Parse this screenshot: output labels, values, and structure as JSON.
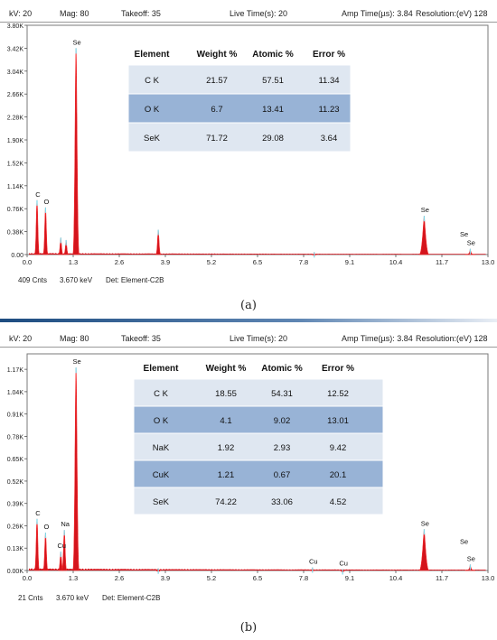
{
  "panels": [
    {
      "header": {
        "kv": "kV: 20",
        "mag": "Mag: 80",
        "takeoff": "Takeoff: 35",
        "live_time": "Live Time(s): 20",
        "amp_time": "Amp Time(µs): 3.84",
        "resolution": "Resolution:(eV) 128"
      },
      "footer": {
        "counts": "409 Cnts",
        "kev": "3.670 keV",
        "det": "Det: Element-C2B"
      },
      "caption": "(a)"
    },
    {
      "header": {
        "kv": "kV: 20",
        "mag": "Mag: 80",
        "takeoff": "Takeoff: 35",
        "live_time": "Live Time(s): 20",
        "amp_time": "Amp Time(µs): 3.84",
        "resolution": "Resolution:(eV) 128"
      },
      "footer": {
        "counts": "21 Cnts",
        "kev": "3.670 keV",
        "det": "Det: Element-C2B"
      },
      "caption": "(b)"
    }
  ],
  "chart_data": [
    {
      "type": "area",
      "x_ticks": [
        "0.0",
        "1.3",
        "2.6",
        "3.9",
        "5.2",
        "6.5",
        "7.8",
        "9.1",
        "10.4",
        "11.7",
        "13.0"
      ],
      "y_ticks": [
        "0.00",
        "0.38K",
        "0.76K",
        "1.14K",
        "1.52K",
        "1.90K",
        "2.28K",
        "2.66K",
        "3.04K",
        "3.42K",
        "3.80K"
      ],
      "xlim": [
        0,
        13.0
      ],
      "ylim": [
        0,
        3800
      ],
      "peaks": [
        {
          "x": 0.28,
          "y": 900
        },
        {
          "x": 0.52,
          "y": 780
        },
        {
          "x": 0.95,
          "y": 280
        },
        {
          "x": 1.1,
          "y": 240
        },
        {
          "x": 1.38,
          "y": 3420
        },
        {
          "x": 3.7,
          "y": 410
        },
        {
          "x": 8.1,
          "y": 40
        },
        {
          "x": 11.2,
          "y": 640
        },
        {
          "x": 12.5,
          "y": 95
        }
      ],
      "peak_labels": [
        {
          "text": "Se",
          "x": 1.38,
          "y": 3420
        },
        {
          "text": "C",
          "x": 0.28,
          "y": 900
        },
        {
          "text": "O",
          "x": 0.52,
          "y": 780
        },
        {
          "text": "Se",
          "x": 11.2,
          "y": 640
        },
        {
          "text": "Se",
          "x": 12.3,
          "y": 240
        },
        {
          "text": "Se",
          "x": 12.5,
          "y": 95
        }
      ],
      "table": {
        "headers": [
          "Element",
          "Weight %",
          "Atomic %",
          "Error %"
        ],
        "rows": [
          [
            "C K",
            "21.57",
            "57.51",
            "11.34"
          ],
          [
            "O K",
            "6.7",
            "13.41",
            "11.23"
          ],
          [
            "SeK",
            "71.72",
            "29.08",
            "3.64"
          ]
        ]
      }
    },
    {
      "type": "area",
      "x_ticks": [
        "0.0",
        "1.3",
        "2.6",
        "3.9",
        "5.2",
        "6.5",
        "7.8",
        "9.1",
        "10.4",
        "11.7",
        "13.0"
      ],
      "y_ticks": [
        "0.00K",
        "0.13K",
        "0.26K",
        "0.39K",
        "0.52K",
        "0.65K",
        "0.78K",
        "0.91K",
        "1.04K",
        "1.17K"
      ],
      "xlim": [
        0,
        13.0
      ],
      "ylim": [
        0,
        1260
      ],
      "peaks": [
        {
          "x": 0.28,
          "y": 300
        },
        {
          "x": 0.52,
          "y": 220
        },
        {
          "x": 0.95,
          "y": 110
        },
        {
          "x": 1.05,
          "y": 235
        },
        {
          "x": 1.38,
          "y": 1180
        },
        {
          "x": 3.7,
          "y": 12
        },
        {
          "x": 8.05,
          "y": 18
        },
        {
          "x": 8.9,
          "y": 8
        },
        {
          "x": 11.2,
          "y": 240
        },
        {
          "x": 12.5,
          "y": 35
        }
      ],
      "peak_labels": [
        {
          "text": "Se",
          "x": 1.38,
          "y": 1180
        },
        {
          "text": "C",
          "x": 0.28,
          "y": 300
        },
        {
          "text": "O",
          "x": 0.52,
          "y": 220
        },
        {
          "text": "Na",
          "x": 1.05,
          "y": 235
        },
        {
          "text": "Cu",
          "x": 0.95,
          "y": 110
        },
        {
          "text": "Cu",
          "x": 8.05,
          "y": 18
        },
        {
          "text": "Cu",
          "x": 8.9,
          "y": 8
        },
        {
          "text": "Se",
          "x": 11.2,
          "y": 240
        },
        {
          "text": "Se",
          "x": 12.3,
          "y": 135
        },
        {
          "text": "Se",
          "x": 12.5,
          "y": 35
        }
      ],
      "table": {
        "headers": [
          "Element",
          "Weight %",
          "Atomic %",
          "Error %"
        ],
        "rows": [
          [
            "C K",
            "18.55",
            "54.31",
            "12.52"
          ],
          [
            "O K",
            "4.1",
            "9.02",
            "13.01"
          ],
          [
            "NaK",
            "1.92",
            "2.93",
            "9.42"
          ],
          [
            "CuK",
            "1.21",
            "0.67",
            "20.1"
          ],
          [
            "SeK",
            "74.22",
            "33.06",
            "4.52"
          ]
        ]
      }
    }
  ],
  "colors": {
    "spectrum_fill": "#d4141c",
    "spectrum_edge": "#ff2a2a",
    "peak_tip": "#7fd8e8",
    "table_row_light": "#dfe7f1",
    "table_row_dark": "#98b3d6",
    "table_bg": "#eef2f7"
  }
}
